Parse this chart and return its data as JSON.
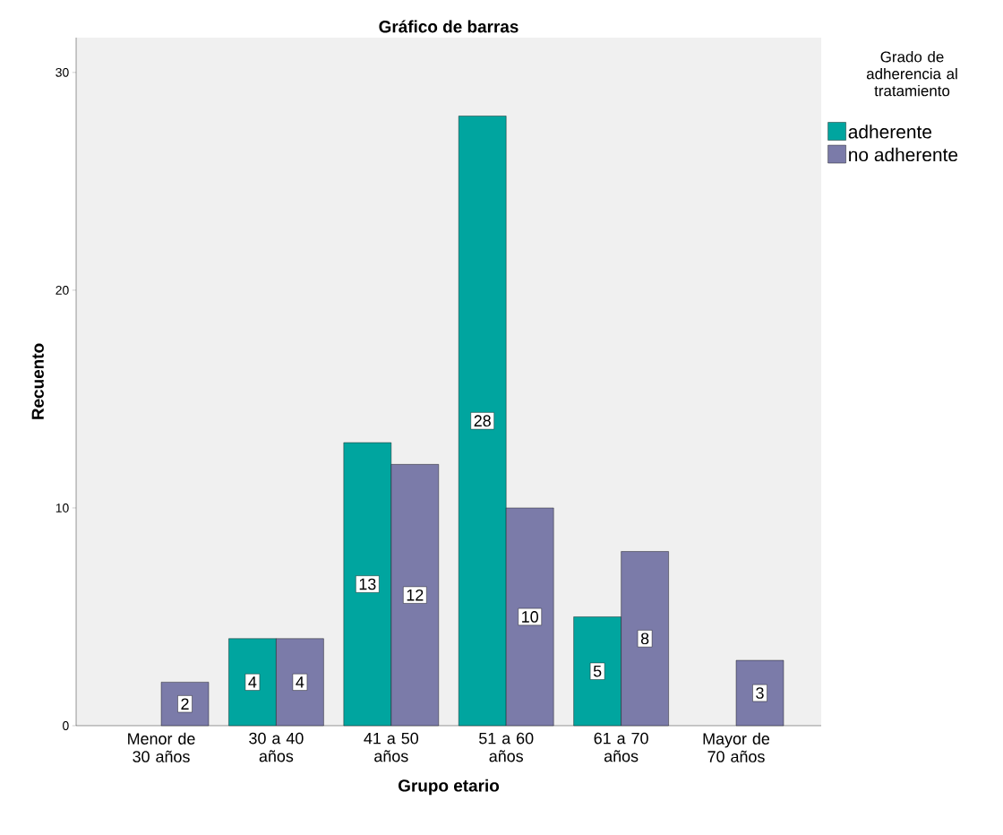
{
  "chart_data": {
    "type": "bar",
    "title": "Gráfico de barras",
    "xlabel": "Grupo etario",
    "ylabel": "Recuento",
    "legend_title": "Grado de adherencia al tratamiento",
    "categories": [
      "Menor de 30 años",
      "30 a 40 años",
      "41 a 50 años",
      "51 a 60 años",
      "61 a 70 años",
      "Mayor de 70 años"
    ],
    "series": [
      {
        "name": "adherente",
        "color": "#00a59f",
        "values": [
          null,
          4,
          13,
          28,
          5,
          null
        ]
      },
      {
        "name": "no adherente",
        "color": "#7b7ba9",
        "values": [
          2,
          4,
          12,
          10,
          8,
          3
        ]
      }
    ],
    "ylim": [
      0,
      31.6
    ],
    "yticks": [
      0,
      10,
      20,
      30
    ],
    "grid": false,
    "legend": "top right",
    "data_labels": true
  }
}
